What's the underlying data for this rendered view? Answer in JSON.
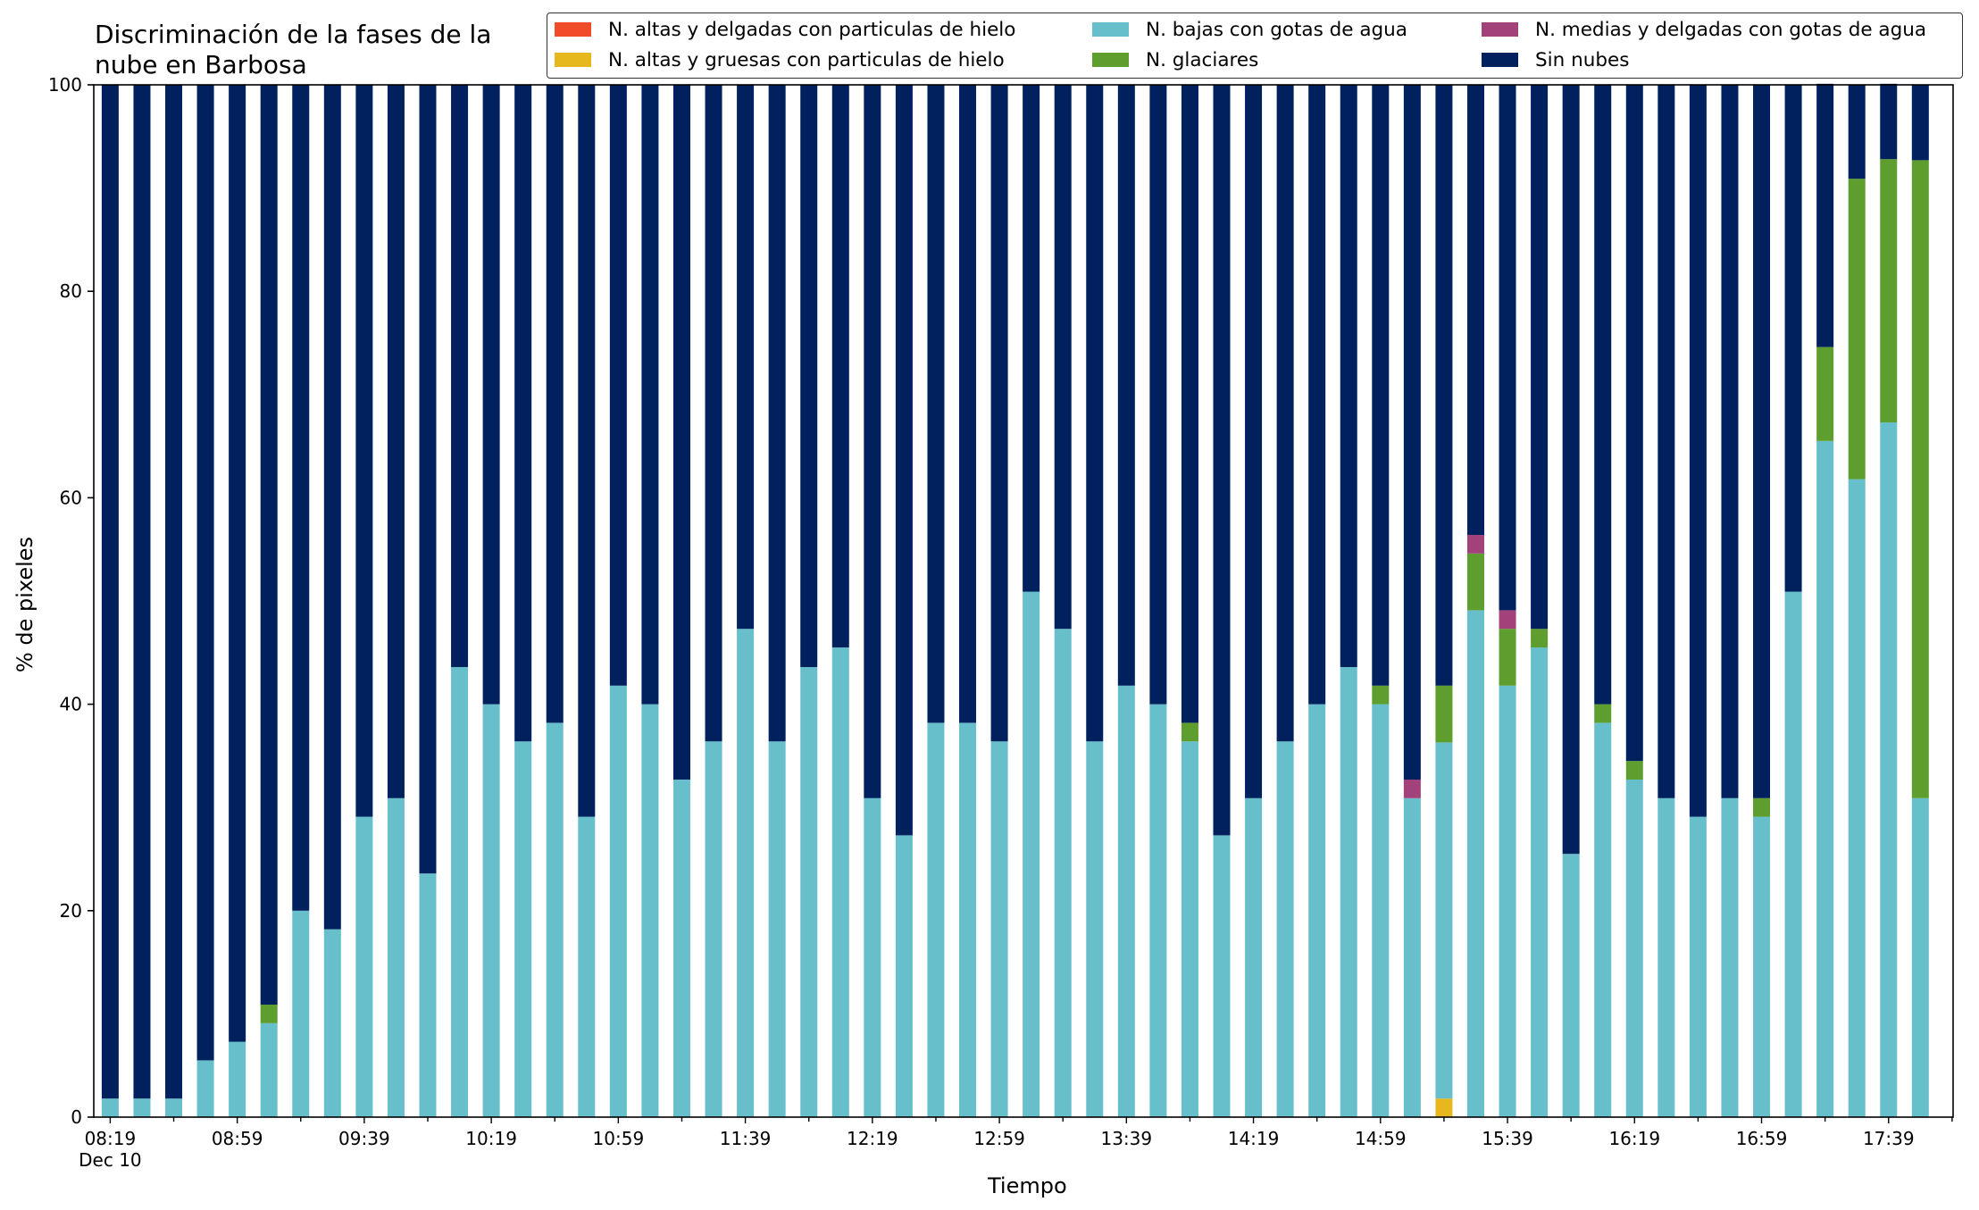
{
  "chart_data": {
    "type": "bar",
    "stacked": true,
    "title": "Discriminación de la fases de la nube en Barbosa",
    "title_lines": [
      "Discriminación de la fases de la",
      "nube en Barbosa"
    ],
    "xlabel": "Tiempo",
    "ylabel": "% de pixeles",
    "ylim": [
      0,
      100
    ],
    "yticks": [
      0,
      20,
      40,
      60,
      80,
      100
    ],
    "xticks": [
      {
        "index": 0,
        "label": "08:19",
        "sublabel": "Dec 10"
      },
      {
        "index": 4,
        "label": "08:59"
      },
      {
        "index": 8,
        "label": "09:39"
      },
      {
        "index": 12,
        "label": "10:19"
      },
      {
        "index": 16,
        "label": "10:59"
      },
      {
        "index": 20,
        "label": "11:39"
      },
      {
        "index": 24,
        "label": "12:19"
      },
      {
        "index": 28,
        "label": "12:59"
      },
      {
        "index": 32,
        "label": "13:39"
      },
      {
        "index": 36,
        "label": "14:19"
      },
      {
        "index": 40,
        "label": "14:59"
      },
      {
        "index": 44,
        "label": "15:39"
      },
      {
        "index": 48,
        "label": "16:19"
      },
      {
        "index": 52,
        "label": "16:59"
      },
      {
        "index": 56,
        "label": "17:39"
      }
    ],
    "x": [
      "08:19",
      "08:29",
      "08:39",
      "08:49",
      "08:59",
      "09:09",
      "09:19",
      "09:29",
      "09:39",
      "09:49",
      "09:59",
      "10:09",
      "10:19",
      "10:29",
      "10:39",
      "10:49",
      "10:59",
      "11:09",
      "11:19",
      "11:29",
      "11:39",
      "11:49",
      "11:59",
      "12:09",
      "12:19",
      "12:29",
      "12:39",
      "12:49",
      "12:59",
      "13:09",
      "13:19",
      "13:29",
      "13:39",
      "13:49",
      "13:59",
      "14:09",
      "14:19",
      "14:29",
      "14:39",
      "14:49",
      "14:59",
      "15:09",
      "15:19",
      "15:29",
      "15:39",
      "15:49",
      "15:59",
      "16:09",
      "16:19",
      "16:29",
      "16:39",
      "16:49",
      "16:59",
      "17:09",
      "17:19",
      "17:29",
      "17:39",
      "17:49"
    ],
    "legend_position": "upper right",
    "legend_columns": 3,
    "series": [
      {
        "name": "N. altas y delgadas con particulas de hielo",
        "color": "#f14c2a",
        "values": [
          0,
          0,
          0,
          0,
          0,
          0,
          0,
          0,
          0,
          0,
          0,
          0,
          0,
          0,
          0,
          0,
          0,
          0,
          0,
          0,
          0,
          0,
          0,
          0,
          0,
          0,
          0,
          0,
          0,
          0,
          0,
          0,
          0,
          0,
          0,
          0,
          0,
          0,
          0,
          0,
          0,
          0,
          0,
          0,
          0,
          0,
          0,
          0,
          0,
          0,
          0,
          0,
          0,
          0,
          0,
          0,
          0,
          0
        ]
      },
      {
        "name": "N. altas y gruesas con particulas de hielo",
        "color": "#e6b81e",
        "values": [
          0,
          0,
          0,
          0,
          0,
          0,
          0,
          0,
          0,
          0,
          0,
          0,
          0,
          0,
          0,
          0,
          0,
          0,
          0,
          0,
          0,
          0,
          0,
          0,
          0,
          0,
          0,
          0,
          0,
          0,
          0,
          0,
          0,
          0,
          0,
          0,
          0,
          0,
          0,
          0,
          0,
          0,
          1.8,
          0,
          0,
          0,
          0,
          0,
          0,
          0,
          0,
          0,
          0,
          0,
          0,
          0,
          0,
          0
        ]
      },
      {
        "name": "N. bajas con gotas de agua",
        "color": "#67bfcb",
        "values": [
          1.8,
          1.8,
          1.8,
          5.5,
          7.3,
          9.1,
          20.0,
          18.2,
          29.1,
          30.9,
          23.6,
          43.6,
          40.0,
          36.4,
          38.2,
          29.1,
          41.8,
          40.0,
          32.7,
          36.4,
          47.3,
          36.4,
          43.6,
          45.5,
          30.9,
          27.3,
          38.2,
          38.2,
          36.4,
          50.9,
          47.3,
          36.4,
          41.8,
          40.0,
          36.4,
          27.3,
          30.9,
          36.4,
          40.0,
          43.6,
          40.0,
          30.9,
          34.5,
          49.1,
          41.8,
          45.5,
          25.5,
          38.2,
          32.7,
          30.9,
          29.1,
          30.9,
          29.1,
          50.9,
          65.5,
          61.8,
          67.3,
          30.9
        ]
      },
      {
        "name": "N. glaciares",
        "color": "#5d9e2e",
        "values": [
          0,
          0,
          0,
          0,
          0,
          1.8,
          0,
          0,
          0,
          0,
          0,
          0,
          0,
          0,
          0,
          0,
          0,
          0,
          0,
          0,
          0,
          0,
          0,
          0,
          0,
          0,
          0,
          0,
          0,
          0,
          0,
          0,
          0,
          0,
          1.8,
          0,
          0,
          0,
          0,
          0,
          1.8,
          0,
          5.5,
          5.5,
          5.5,
          1.8,
          0,
          1.8,
          1.8,
          0,
          0,
          0,
          1.8,
          0,
          9.1,
          29.1,
          25.5,
          61.8
        ]
      },
      {
        "name": "N. medias y delgadas con gotas de agua",
        "color": "#a3417a",
        "values": [
          0,
          0,
          0,
          0,
          0,
          0,
          0,
          0,
          0,
          0,
          0,
          0,
          0,
          0,
          0,
          0,
          0,
          0,
          0,
          0,
          0,
          0,
          0,
          0,
          0,
          0,
          0,
          0,
          0,
          0,
          0,
          0,
          0,
          0,
          0,
          0,
          0,
          0,
          0,
          0,
          0,
          1.8,
          0,
          1.8,
          1.8,
          0,
          0,
          0,
          0,
          0,
          0,
          0,
          0,
          0,
          0,
          0,
          0,
          0
        ]
      },
      {
        "name": "Sin nubes",
        "color": "#00205e",
        "values": [
          98.2,
          98.2,
          98.2,
          94.5,
          92.7,
          89.1,
          80.0,
          81.8,
          70.9,
          69.1,
          76.4,
          56.4,
          60.0,
          63.6,
          61.8,
          70.9,
          58.2,
          60.0,
          67.3,
          63.6,
          52.7,
          63.6,
          56.4,
          54.5,
          69.1,
          72.7,
          61.8,
          61.8,
          63.6,
          49.1,
          52.7,
          63.6,
          58.2,
          60.0,
          61.8,
          72.7,
          69.1,
          63.6,
          60.0,
          56.4,
          58.2,
          67.3,
          58.2,
          43.6,
          50.9,
          52.7,
          74.5,
          60.0,
          65.5,
          69.1,
          70.9,
          69.1,
          69.1,
          49.1,
          25.5,
          9.1,
          7.3,
          7.3
        ]
      }
    ]
  }
}
